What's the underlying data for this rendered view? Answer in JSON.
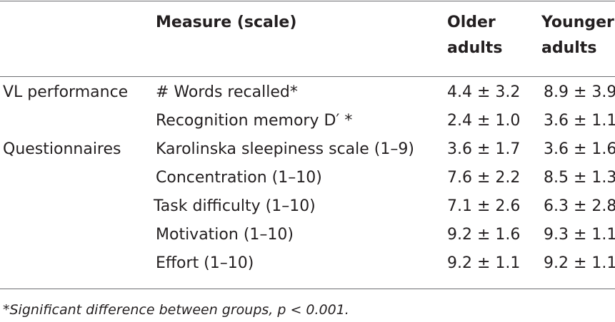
{
  "table": {
    "headers": {
      "group": "",
      "measure": "Measure (scale)",
      "older_line1": "Older",
      "older_line2": "adults",
      "younger_line1": "Younger",
      "younger_line2": "adults"
    },
    "rows": [
      {
        "group": "VL performance",
        "measure": "# Words recalled*",
        "older": "4.4 ± 3.2",
        "younger": "8.9 ± 3.9"
      },
      {
        "group": "",
        "measure": "Recognition memory D′ *",
        "older": "2.4 ± 1.0",
        "younger": "3.6 ± 1.1"
      },
      {
        "group": "Questionnaires",
        "measure": "Karolinska sleepiness scale (1–9)",
        "older": "3.6 ± 1.7",
        "younger": "3.6 ± 1.6"
      },
      {
        "group": "",
        "measure": "Concentration (1–10)",
        "older": "7.6 ± 2.2",
        "younger": "8.5 ± 1.3"
      },
      {
        "group": "",
        "measure": "Task difficulty (1–10)",
        "older": "7.1 ± 2.6",
        "younger": "6.3 ± 2.8"
      },
      {
        "group": "",
        "measure": "Motivation (1–10)",
        "older": "9.2 ± 1.6",
        "younger": "9.3 ± 1.1"
      },
      {
        "group": "",
        "measure": "Effort (1–10)",
        "older": "9.2 ± 1.1",
        "younger": "9.2 ± 1.1"
      }
    ],
    "footnote": "*Significant difference between groups, p < 0.001."
  }
}
